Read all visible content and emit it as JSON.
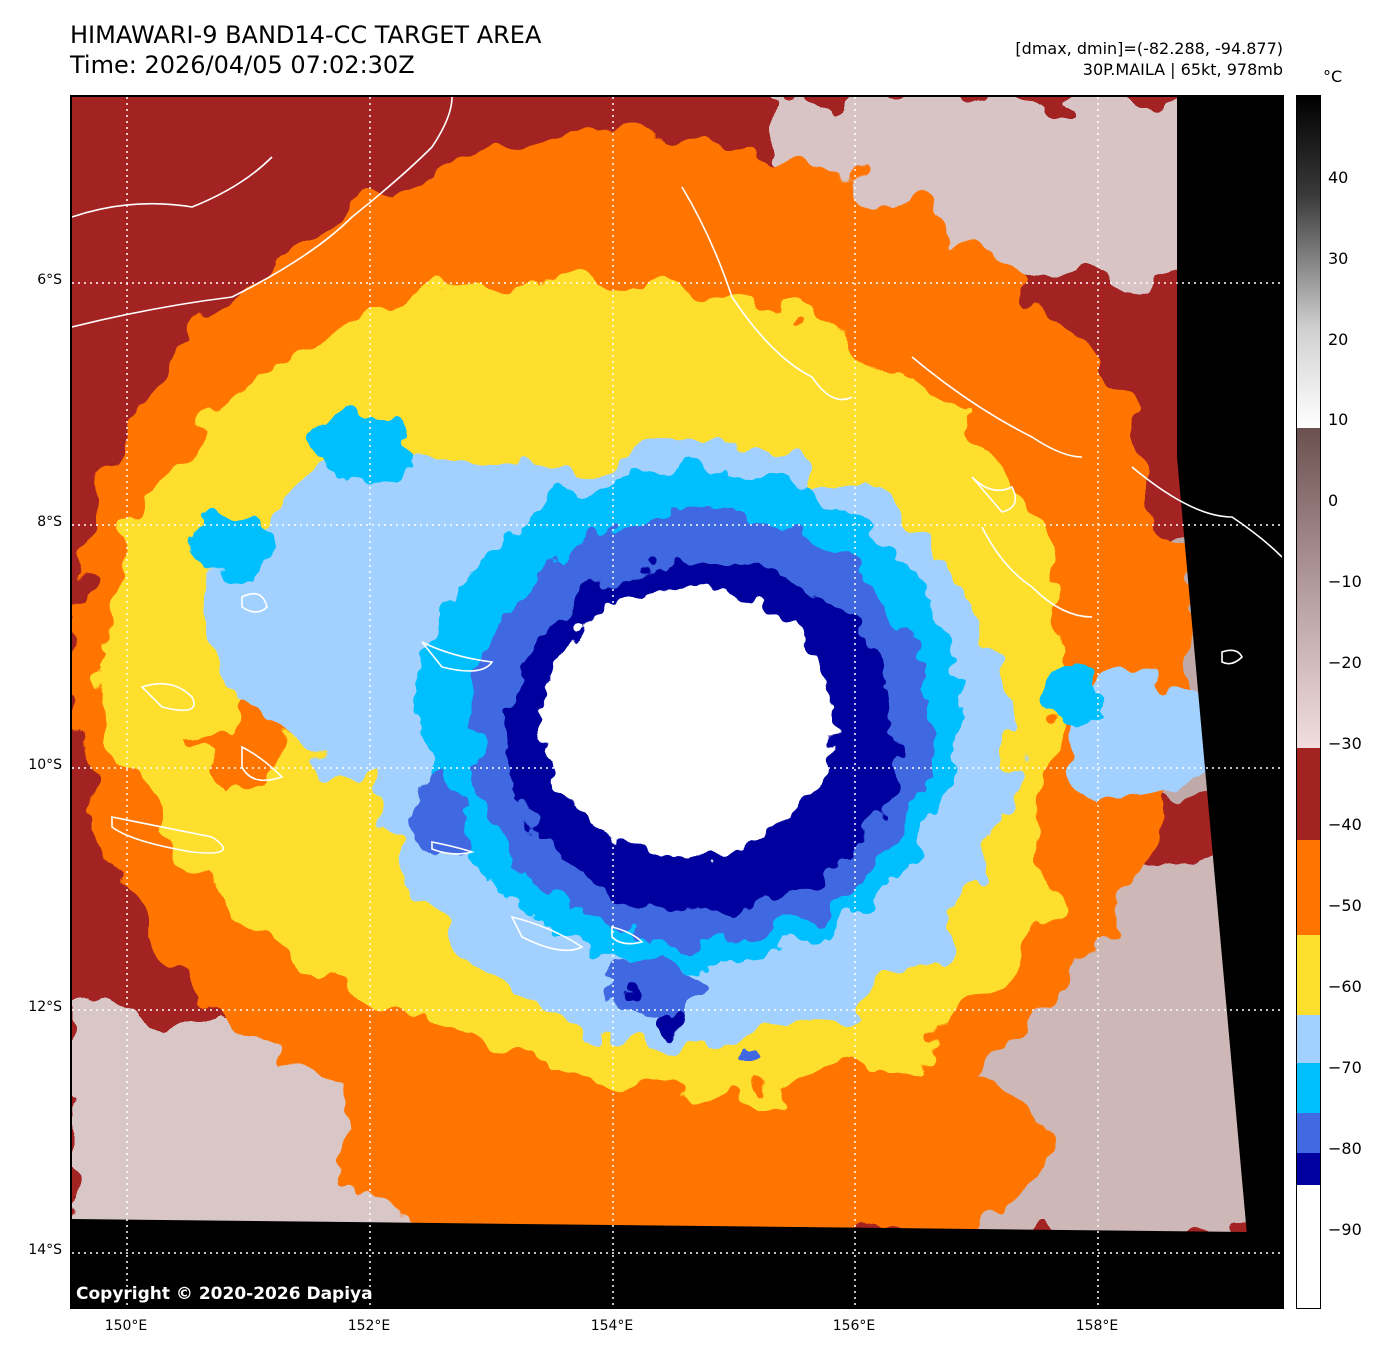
{
  "header": {
    "title_line1": "HIMAWARI-9 BAND14-CC TARGET AREA",
    "title_line2": "Time: 2026/04/05 07:02:30Z",
    "info_line1": "[dmax, dmin]=(-82.288, -94.877)",
    "info_line2": "30P.MAILA | 65kt, 978mb"
  },
  "map": {
    "latitude_labels": [
      "6°S",
      "8°S",
      "10°S",
      "12°S",
      "14°S"
    ],
    "longitude_labels": [
      "150°E",
      "152°E",
      "154°E",
      "156°E",
      "158°E"
    ],
    "grid": "dotted",
    "copyright": "Copyright © 2020-2026 Dapiya"
  },
  "colorbar": {
    "unit": "°C",
    "tick_labels": [
      "40",
      "30",
      "20",
      "10",
      "0",
      "−10",
      "−20",
      "−30",
      "−40",
      "−50",
      "−60",
      "−70",
      "−80",
      "−90"
    ],
    "colors": {
      "coldest": "#ffffff",
      "navy": "#00009e",
      "royal_blue": "#4169e1",
      "deep_sky": "#00bfff",
      "light_blue": "#a3d1ff",
      "yellow": "#ffdf2e",
      "orange": "#ff7400",
      "dark_red": "#a32222",
      "pink_gray": "#e6cfcf",
      "warm_black": "#000000"
    }
  }
}
